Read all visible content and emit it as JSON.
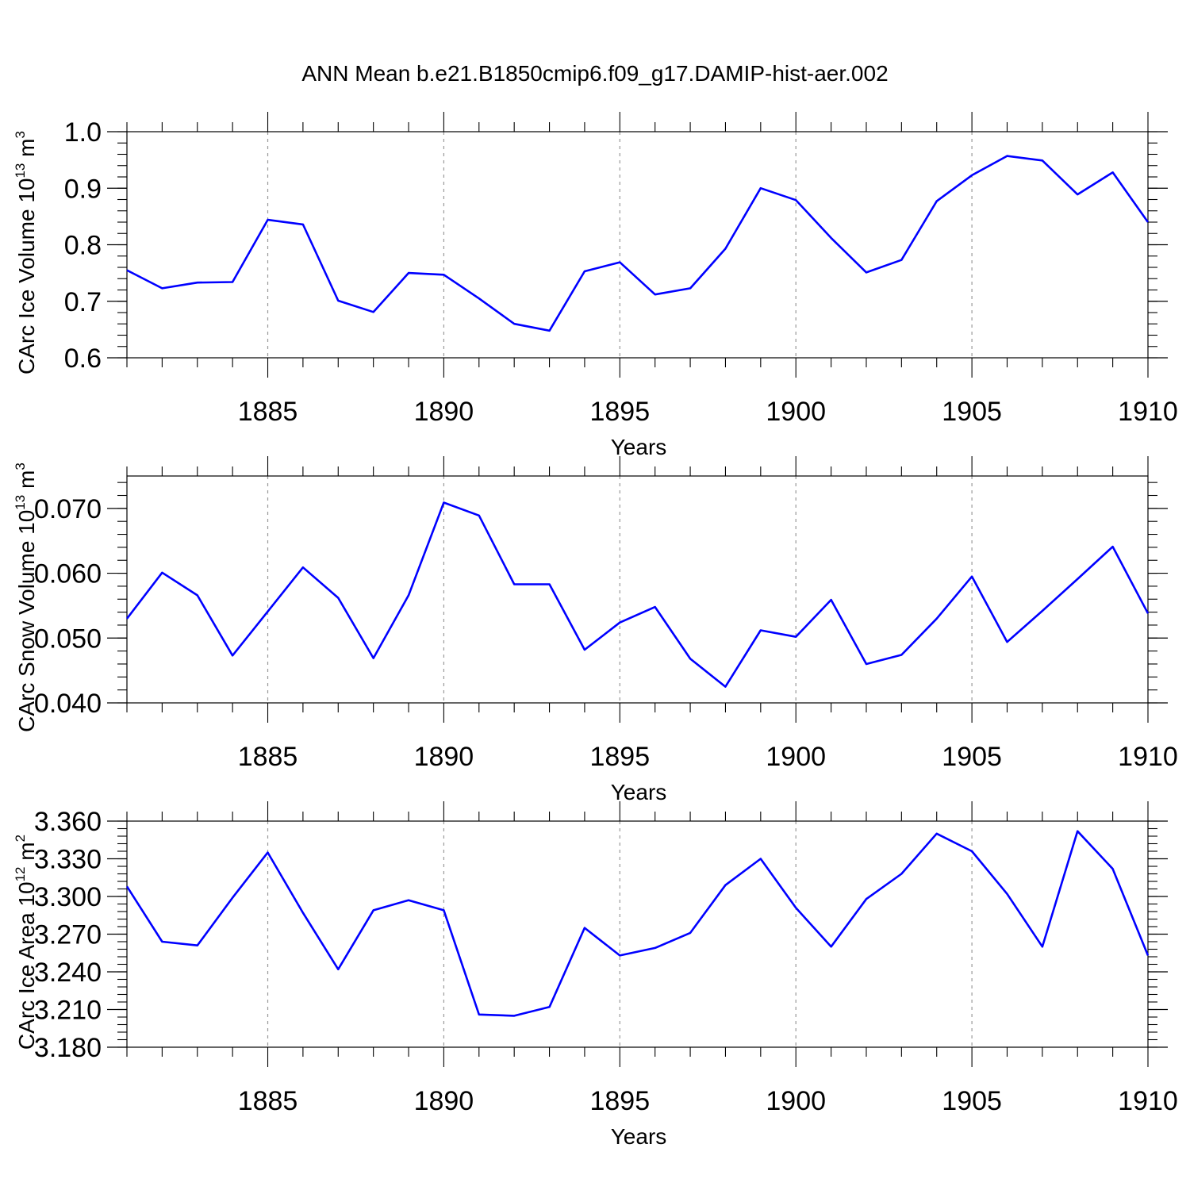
{
  "title": "ANN Mean b.e21.B1850cmip6.f09_g17.DAMIP-hist-aer.002",
  "colors": {
    "line": "#0000ff",
    "axis": "#000000",
    "grid": "#999999"
  },
  "chart_data": [
    {
      "type": "line",
      "ylabel": "CArc Ice Volume 10",
      "ylabel_exp": "13",
      "ylabel_unit": "m",
      "ylabel_unit_exp": "3",
      "xlabel": "Years",
      "xlim": [
        1881,
        1910
      ],
      "ylim": [
        0.6,
        1.0
      ],
      "xticks": [
        1885,
        1890,
        1895,
        1900,
        1905,
        1910
      ],
      "yticks": [
        0.6,
        0.7,
        0.8,
        0.9,
        1.0
      ],
      "ytick_labels": [
        "0.6",
        "0.7",
        "0.8",
        "0.9",
        "1.0"
      ],
      "yminor": 0.02,
      "series": [
        {
          "name": "CArc Ice Volume",
          "x": [
            1881,
            1882,
            1883,
            1884,
            1885,
            1886,
            1887,
            1888,
            1889,
            1890,
            1891,
            1892,
            1893,
            1894,
            1895,
            1896,
            1897,
            1898,
            1899,
            1900,
            1901,
            1902,
            1903,
            1904,
            1905,
            1906,
            1907,
            1908,
            1909,
            1910
          ],
          "values": [
            0.755,
            0.723,
            0.733,
            0.734,
            0.844,
            0.836,
            0.701,
            0.681,
            0.75,
            0.747,
            0.705,
            0.66,
            0.648,
            0.753,
            0.769,
            0.712,
            0.723,
            0.793,
            0.9,
            0.879,
            0.812,
            0.751,
            0.773,
            0.877,
            0.923,
            0.957,
            0.949,
            0.889,
            0.928,
            0.84
          ]
        }
      ]
    },
    {
      "type": "line",
      "ylabel": "CArc Snow Volume 10",
      "ylabel_exp": "13",
      "ylabel_unit": "m",
      "ylabel_unit_exp": "3",
      "xlabel": "Years",
      "xlim": [
        1881,
        1910
      ],
      "ylim": [
        0.04,
        0.075
      ],
      "xticks": [
        1885,
        1890,
        1895,
        1900,
        1905,
        1910
      ],
      "yticks": [
        0.04,
        0.05,
        0.06,
        0.07
      ],
      "ytick_labels": [
        "0.040",
        "0.050",
        "0.060",
        "0.070"
      ],
      "yminor": 0.002,
      "series": [
        {
          "name": "CArc Snow Volume",
          "x": [
            1881,
            1882,
            1883,
            1884,
            1885,
            1886,
            1887,
            1888,
            1889,
            1890,
            1891,
            1892,
            1893,
            1894,
            1895,
            1896,
            1897,
            1898,
            1899,
            1900,
            1901,
            1902,
            1903,
            1904,
            1905,
            1906,
            1907,
            1908,
            1909,
            1910
          ],
          "values": [
            0.053,
            0.0601,
            0.0566,
            0.0473,
            0.0541,
            0.0609,
            0.0562,
            0.0469,
            0.0566,
            0.0709,
            0.0689,
            0.0583,
            0.0583,
            0.0482,
            0.0524,
            0.0548,
            0.0468,
            0.0425,
            0.0512,
            0.0502,
            0.0559,
            0.046,
            0.0474,
            0.053,
            0.0595,
            0.0494,
            0.0542,
            0.0591,
            0.0641,
            0.0538
          ]
        }
      ]
    },
    {
      "type": "line",
      "ylabel": "CArc Ice Area 10",
      "ylabel_exp": "12",
      "ylabel_unit": "m",
      "ylabel_unit_exp": "2",
      "xlabel": "Years",
      "xlim": [
        1881,
        1910
      ],
      "ylim": [
        3.18,
        3.36
      ],
      "xticks": [
        1885,
        1890,
        1895,
        1900,
        1905,
        1910
      ],
      "yticks": [
        3.18,
        3.21,
        3.24,
        3.27,
        3.3,
        3.33,
        3.36
      ],
      "ytick_labels": [
        "3.180",
        "3.210",
        "3.240",
        "3.270",
        "3.300",
        "3.330",
        "3.360"
      ],
      "yminor": 0.006,
      "series": [
        {
          "name": "CArc Ice Area",
          "x": [
            1881,
            1882,
            1883,
            1884,
            1885,
            1886,
            1887,
            1888,
            1889,
            1890,
            1891,
            1892,
            1893,
            1894,
            1895,
            1896,
            1897,
            1898,
            1899,
            1900,
            1901,
            1902,
            1903,
            1904,
            1905,
            1906,
            1907,
            1908,
            1909,
            1910
          ],
          "values": [
            3.308,
            3.264,
            3.261,
            3.299,
            3.335,
            3.287,
            3.242,
            3.289,
            3.297,
            3.289,
            3.206,
            3.205,
            3.212,
            3.275,
            3.253,
            3.259,
            3.271,
            3.309,
            3.33,
            3.291,
            3.26,
            3.298,
            3.318,
            3.35,
            3.336,
            3.302,
            3.26,
            3.352,
            3.322,
            3.253
          ]
        }
      ]
    }
  ]
}
